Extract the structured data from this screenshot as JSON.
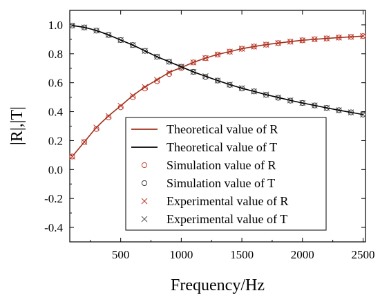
{
  "chart_data": {
    "type": "line",
    "title": "",
    "xlabel": "Frequency/Hz",
    "ylabel": "|R|,|T|",
    "xlim": [
      80,
      2520
    ],
    "ylim": [
      -0.5,
      1.1
    ],
    "xticks": [
      500,
      1000,
      1500,
      2000,
      2500
    ],
    "xtick_labels": [
      "500",
      "1000",
      "1500",
      "2000",
      "2500"
    ],
    "yticks": [
      -0.4,
      -0.2,
      0.0,
      0.2,
      0.4,
      0.6,
      0.8,
      1.0
    ],
    "ytick_labels": [
      "-0.4",
      "-0.2",
      "0.0",
      "0.2",
      "0.4",
      "0.6",
      "0.8",
      "1.0"
    ],
    "grid": false,
    "legend_position": "lower-right",
    "series": [
      {
        "name": "Theoretical value of R",
        "kind": "line",
        "color": "#a0301a",
        "x": [
          100,
          200,
          300,
          400,
          500,
          600,
          700,
          800,
          900,
          1000,
          1100,
          1200,
          1300,
          1400,
          1500,
          1600,
          1700,
          1800,
          1900,
          2000,
          2100,
          2200,
          2300,
          2400,
          2500
        ],
        "y": [
          0.09,
          0.19,
          0.29,
          0.37,
          0.44,
          0.51,
          0.57,
          0.62,
          0.67,
          0.705,
          0.74,
          0.77,
          0.795,
          0.815,
          0.835,
          0.85,
          0.863,
          0.874,
          0.884,
          0.893,
          0.9,
          0.906,
          0.912,
          0.917,
          0.922
        ]
      },
      {
        "name": "Theoretical value of T",
        "kind": "line",
        "color": "#000000",
        "x": [
          100,
          200,
          300,
          400,
          500,
          600,
          700,
          800,
          900,
          1000,
          1100,
          1200,
          1300,
          1400,
          1500,
          1600,
          1700,
          1800,
          1900,
          2000,
          2100,
          2200,
          2300,
          2400,
          2500
        ],
        "y": [
          0.995,
          0.982,
          0.96,
          0.93,
          0.895,
          0.86,
          0.82,
          0.78,
          0.745,
          0.71,
          0.675,
          0.645,
          0.615,
          0.587,
          0.562,
          0.54,
          0.518,
          0.498,
          0.478,
          0.46,
          0.443,
          0.426,
          0.41,
          0.395,
          0.38
        ]
      },
      {
        "name": "Simulation value of R",
        "kind": "marker-circle",
        "color": "#c0392b",
        "x": [
          100,
          200,
          300,
          400,
          500,
          600,
          700,
          800,
          900,
          1000,
          1100,
          1200,
          1300,
          1400,
          1500,
          1600,
          1700,
          1800,
          1900,
          2000,
          2100,
          2200,
          2300,
          2400,
          2500
        ],
        "y": [
          0.09,
          0.19,
          0.28,
          0.36,
          0.43,
          0.5,
          0.56,
          0.61,
          0.66,
          0.7,
          0.74,
          0.77,
          0.795,
          0.815,
          0.835,
          0.85,
          0.863,
          0.874,
          0.884,
          0.893,
          0.9,
          0.906,
          0.912,
          0.917,
          0.922
        ]
      },
      {
        "name": "Simulation value of T",
        "kind": "marker-circle",
        "color": "#333333",
        "x": [
          100,
          200,
          300,
          400,
          500,
          600,
          700,
          800,
          900,
          1000,
          1100,
          1200,
          1300,
          1400,
          1500,
          1600,
          1700,
          1800,
          1900,
          2000,
          2100,
          2200,
          2300,
          2400,
          2500
        ],
        "y": [
          0.995,
          0.982,
          0.96,
          0.93,
          0.895,
          0.86,
          0.82,
          0.78,
          0.745,
          0.71,
          0.675,
          0.64,
          0.615,
          0.585,
          0.56,
          0.54,
          0.516,
          0.496,
          0.476,
          0.46,
          0.443,
          0.426,
          0.41,
          0.395,
          0.38
        ]
      },
      {
        "name": "Experimental value of R",
        "kind": "marker-x",
        "color": "#c0392b",
        "x": [
          100,
          200,
          300,
          400,
          500,
          600,
          700,
          800,
          900,
          1000,
          1100,
          1200,
          1300,
          1400,
          1500,
          1600,
          1700,
          1800,
          1900,
          2000,
          2100,
          2200,
          2300,
          2400,
          2500
        ],
        "y": [
          0.09,
          0.19,
          0.29,
          0.37,
          0.44,
          0.51,
          0.57,
          0.62,
          0.67,
          0.71,
          0.74,
          0.77,
          0.795,
          0.815,
          0.835,
          0.85,
          0.863,
          0.874,
          0.884,
          0.893,
          0.9,
          0.906,
          0.912,
          0.917,
          0.922
        ]
      },
      {
        "name": "Experimental value of T",
        "kind": "marker-x",
        "color": "#555555",
        "x": [
          100,
          200,
          300,
          400,
          500,
          600,
          700,
          800,
          900,
          1000,
          1100,
          1200,
          1300,
          1400,
          1500,
          1600,
          1700,
          1800,
          1900,
          2000,
          2100,
          2200,
          2300,
          2400,
          2500
        ],
        "y": [
          0.995,
          0.982,
          0.96,
          0.93,
          0.895,
          0.86,
          0.82,
          0.78,
          0.745,
          0.71,
          0.675,
          0.645,
          0.615,
          0.587,
          0.562,
          0.54,
          0.518,
          0.498,
          0.478,
          0.46,
          0.443,
          0.426,
          0.41,
          0.395,
          0.38
        ]
      }
    ]
  }
}
